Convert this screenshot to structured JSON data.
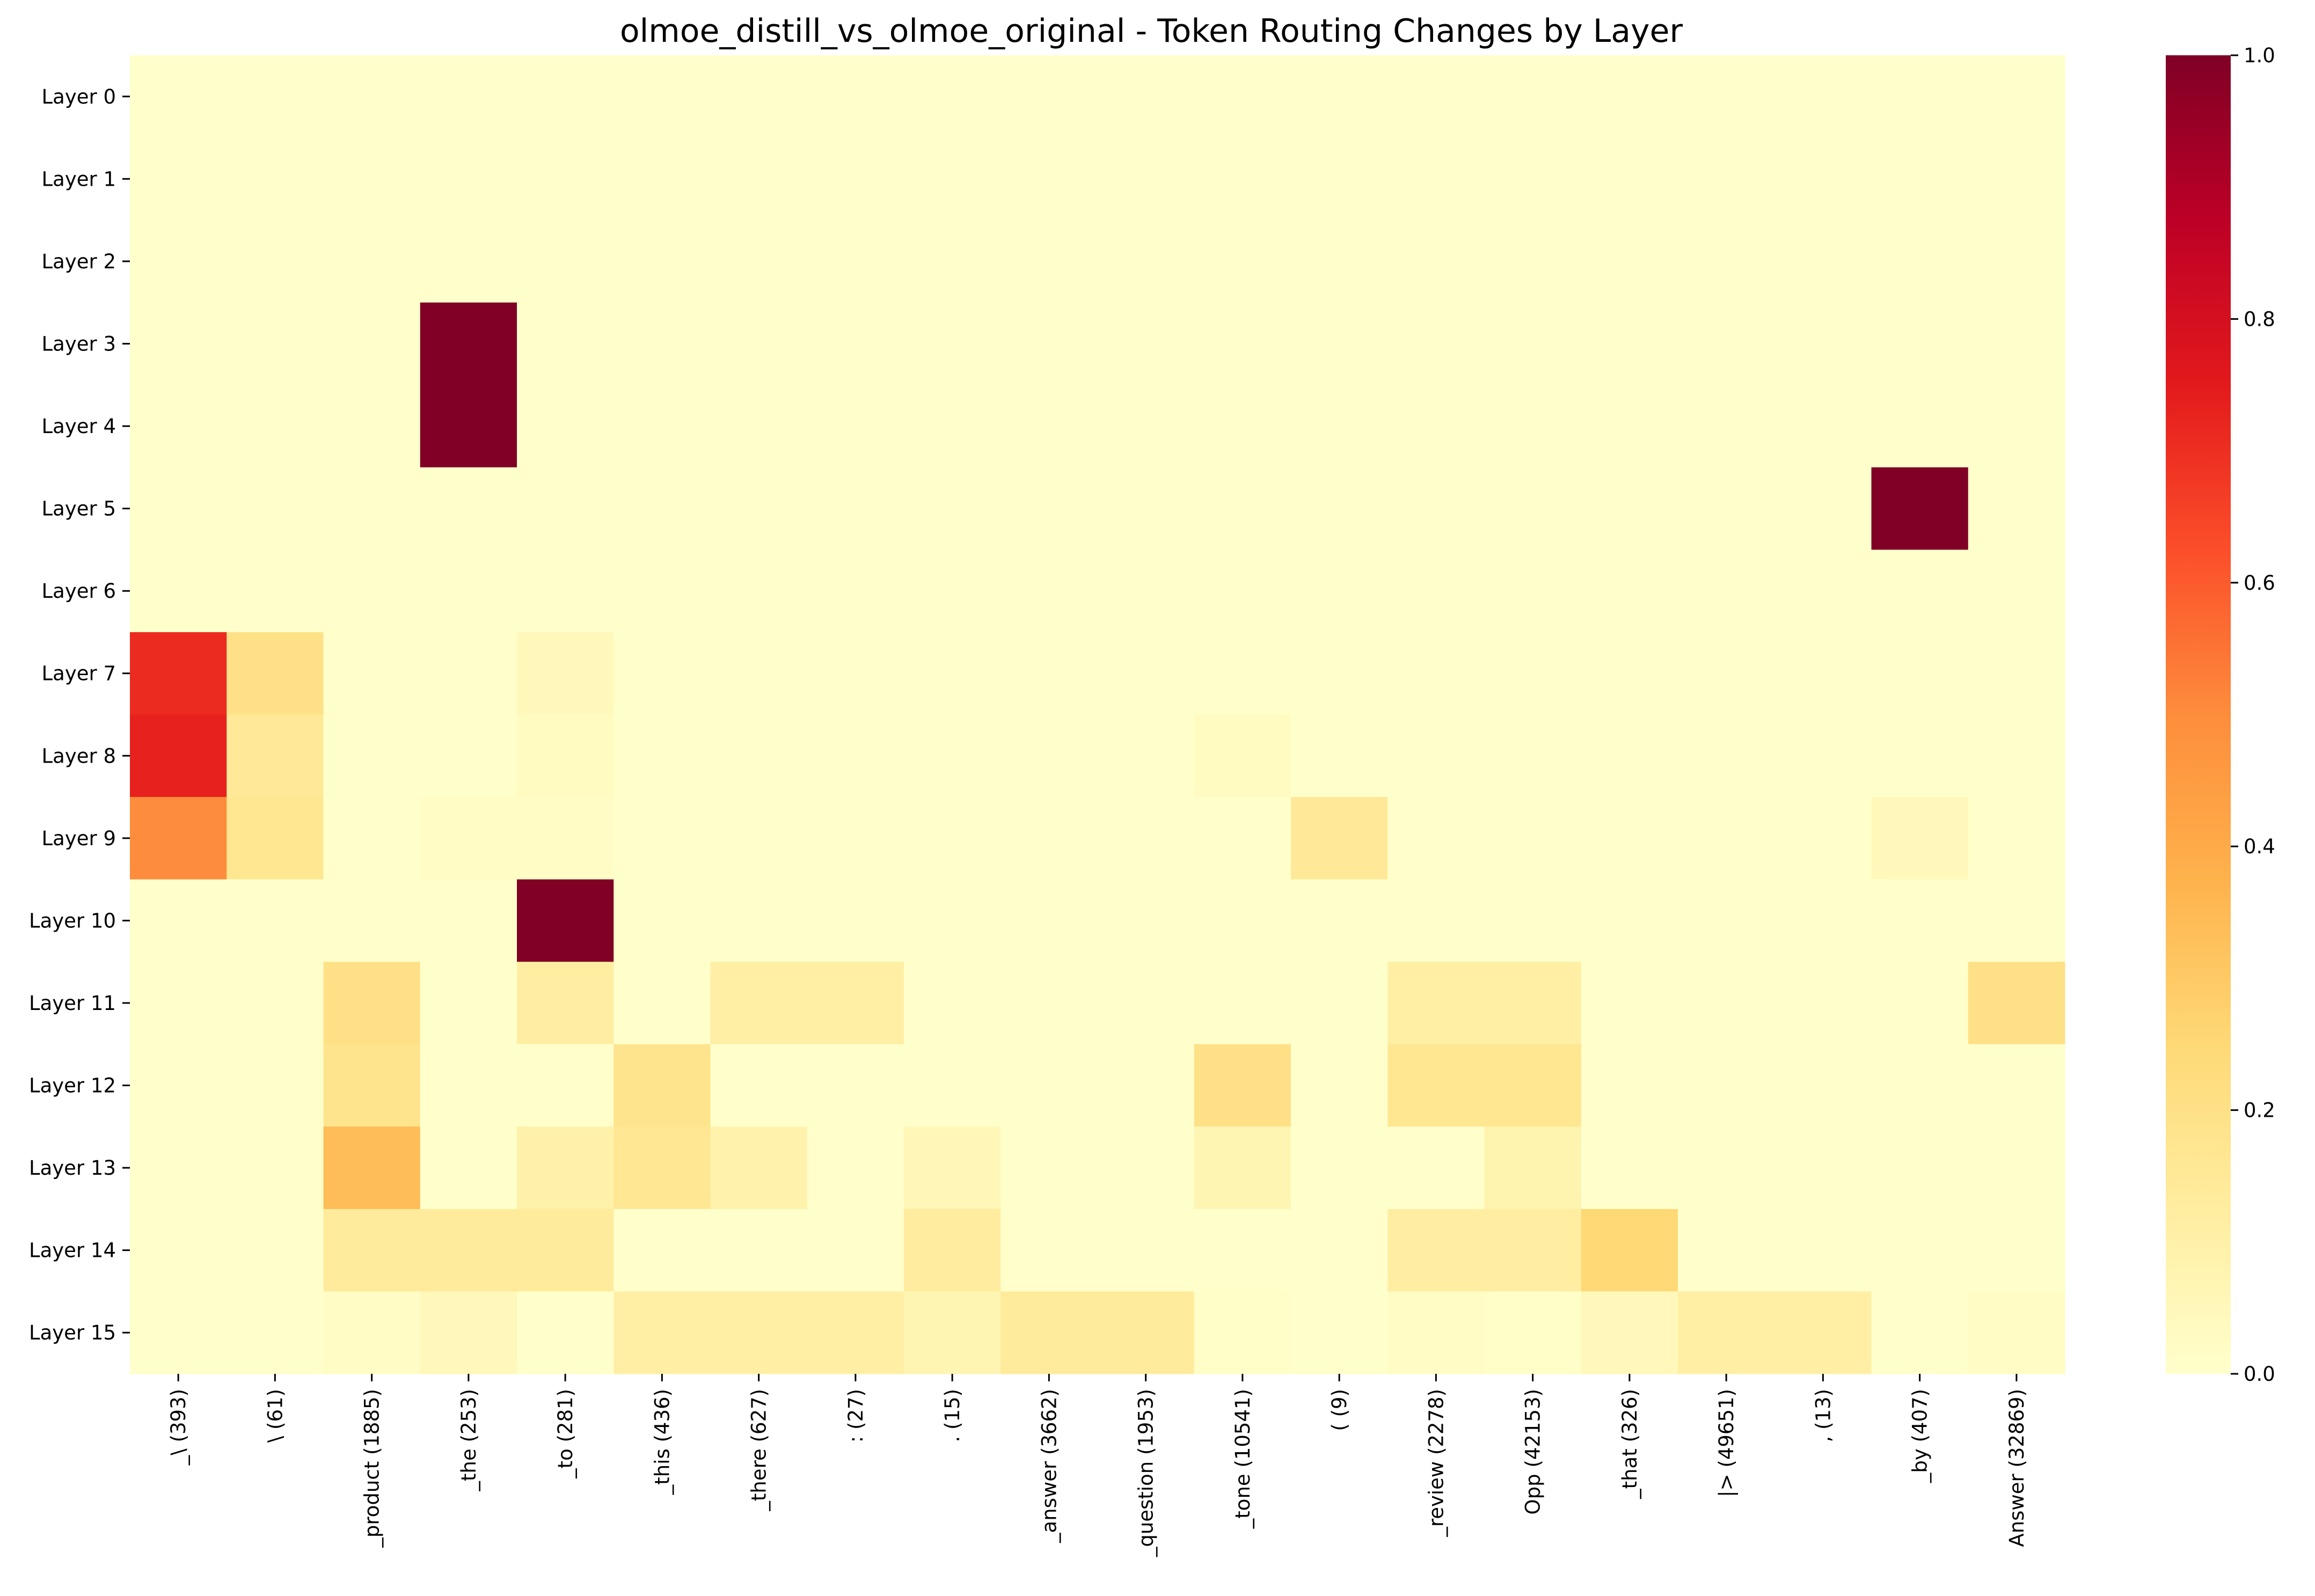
{
  "chart_data": {
    "type": "heatmap",
    "title": "olmoe_distill_vs_olmoe_original - Token Routing Changes by Layer",
    "xlabel": "",
    "ylabel": "",
    "rows": [
      "Layer 0",
      "Layer 1",
      "Layer 2",
      "Layer 3",
      "Layer 4",
      "Layer 5",
      "Layer 6",
      "Layer 7",
      "Layer 8",
      "Layer 9",
      "Layer 10",
      "Layer 11",
      "Layer 12",
      "Layer 13",
      "Layer 14",
      "Layer 15"
    ],
    "columns": [
      "_\\ (393)",
      "\\ (61)",
      "_product (1885)",
      "_the (253)",
      "_to (281)",
      "_this (436)",
      "_there (627)",
      ": (27)",
      ". (15)",
      "_answer (3662)",
      "_question (1953)",
      "_tone (10541)",
      "( (9)",
      "_review (2278)",
      "Opp (42153)",
      "_that (326)",
      "|> (49651)",
      ", (13)",
      "_by (407)",
      "Answer (32869)"
    ],
    "values": [
      [
        0,
        0,
        0,
        0,
        0,
        0,
        0,
        0,
        0,
        0,
        0,
        0,
        0,
        0,
        0,
        0,
        0,
        0,
        0,
        0
      ],
      [
        0,
        0,
        0,
        0,
        0,
        0,
        0,
        0,
        0,
        0,
        0,
        0,
        0,
        0,
        0,
        0,
        0,
        0,
        0,
        0
      ],
      [
        0,
        0,
        0,
        0,
        0,
        0,
        0,
        0,
        0,
        0,
        0,
        0,
        0,
        0,
        0,
        0,
        0,
        0,
        0,
        0
      ],
      [
        0,
        0,
        0,
        1.0,
        0,
        0,
        0,
        0,
        0,
        0,
        0,
        0,
        0,
        0,
        0,
        0,
        0,
        0,
        0,
        0
      ],
      [
        0,
        0,
        0,
        1.0,
        0,
        0,
        0,
        0,
        0,
        0,
        0,
        0,
        0,
        0,
        0,
        0,
        0,
        0,
        0,
        0
      ],
      [
        0,
        0,
        0,
        0,
        0,
        0,
        0,
        0,
        0,
        0,
        0,
        0,
        0,
        0,
        0,
        0,
        0,
        0,
        1.0,
        0
      ],
      [
        0,
        0,
        0,
        0,
        0,
        0,
        0,
        0,
        0,
        0,
        0,
        0,
        0,
        0,
        0,
        0,
        0,
        0,
        0,
        0
      ],
      [
        0.71,
        0.2,
        0,
        0,
        0.05,
        0,
        0,
        0,
        0,
        0,
        0,
        0,
        0,
        0,
        0,
        0,
        0,
        0,
        0,
        0
      ],
      [
        0.73,
        0.15,
        0,
        0,
        0.03,
        0,
        0,
        0,
        0,
        0,
        0,
        0.03,
        0,
        0,
        0,
        0,
        0,
        0,
        0,
        0
      ],
      [
        0.5,
        0.17,
        0,
        0.02,
        0.02,
        0,
        0,
        0,
        0,
        0,
        0,
        0,
        0.15,
        0,
        0,
        0,
        0,
        0,
        0.05,
        0
      ],
      [
        0,
        0,
        0,
        0,
        1.0,
        0,
        0,
        0,
        0,
        0,
        0,
        0,
        0,
        0,
        0,
        0,
        0,
        0,
        0,
        0
      ],
      [
        0,
        0,
        0.2,
        0,
        0.12,
        0,
        0.11,
        0.11,
        0,
        0,
        0,
        0,
        0,
        0.11,
        0.11,
        0,
        0,
        0,
        0,
        0.2
      ],
      [
        0,
        0,
        0.18,
        0,
        0,
        0.18,
        0,
        0,
        0,
        0,
        0,
        0.2,
        0,
        0.17,
        0.17,
        0,
        0,
        0,
        0,
        0
      ],
      [
        0,
        0,
        0.34,
        0,
        0.1,
        0.16,
        0.09,
        0,
        0.06,
        0,
        0,
        0.07,
        0,
        0,
        0.08,
        0,
        0,
        0,
        0,
        0
      ],
      [
        0,
        0,
        0.14,
        0.14,
        0.14,
        0,
        0,
        0,
        0.13,
        0,
        0,
        0,
        0,
        0.12,
        0.12,
        0.25,
        0,
        0,
        0,
        0
      ],
      [
        0,
        0,
        0.02,
        0.05,
        0,
        0.11,
        0.11,
        0.11,
        0.07,
        0.14,
        0.14,
        0.01,
        0,
        0.02,
        0.01,
        0.05,
        0.11,
        0.11,
        0,
        0.02
      ]
    ],
    "colorbar": {
      "min": 0.0,
      "max": 1.0,
      "ticks": [
        0.0,
        0.2,
        0.4,
        0.6,
        0.8,
        1.0
      ],
      "tick_labels": [
        "0.0",
        "0.2",
        "0.4",
        "0.6",
        "0.8",
        "1.0"
      ]
    },
    "colormap": "YlOrRd",
    "colormap_stops": [
      "#ffffcc",
      "#ffeda0",
      "#fed976",
      "#feb24c",
      "#fd8d3c",
      "#fc4e2a",
      "#e31a1c",
      "#bd0026",
      "#800026"
    ]
  }
}
